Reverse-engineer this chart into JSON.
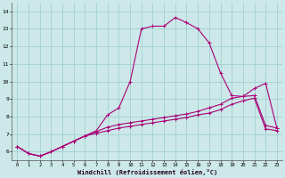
{
  "xlabel": "Windchill (Refroidissement éolien,°C)",
  "bg_color": "#cce8e8",
  "line_color": "#aa0077",
  "grid_color": "#99cccc",
  "x_ticks": [
    0,
    1,
    2,
    3,
    4,
    5,
    6,
    7,
    8,
    9,
    10,
    11,
    12,
    13,
    14,
    15,
    16,
    17,
    18,
    19,
    20,
    21,
    22,
    23
  ],
  "y_ticks": [
    6,
    7,
    8,
    9,
    10,
    11,
    12,
    13,
    14
  ],
  "ylim": [
    5.5,
    14.5
  ],
  "xlim": [
    -0.5,
    23.5
  ],
  "line1": [
    6.3,
    5.9,
    5.75,
    6.0,
    6.3,
    6.6,
    6.9,
    7.2,
    8.1,
    8.5,
    10.0,
    13.0,
    13.15,
    13.15,
    13.65,
    13.35,
    13.0,
    12.2,
    10.5,
    9.2,
    9.15,
    9.6,
    9.9,
    7.35
  ],
  "line2": [
    6.3,
    5.9,
    5.75,
    6.0,
    6.3,
    6.6,
    6.9,
    7.15,
    7.4,
    7.55,
    7.65,
    7.75,
    7.85,
    7.95,
    8.05,
    8.15,
    8.3,
    8.5,
    8.7,
    9.05,
    9.15,
    9.2,
    7.5,
    7.35
  ],
  "line3": [
    6.3,
    5.9,
    5.75,
    6.0,
    6.3,
    6.6,
    6.9,
    7.05,
    7.2,
    7.35,
    7.45,
    7.55,
    7.65,
    7.75,
    7.85,
    7.95,
    8.1,
    8.2,
    8.4,
    8.7,
    8.9,
    9.05,
    7.3,
    7.2
  ]
}
